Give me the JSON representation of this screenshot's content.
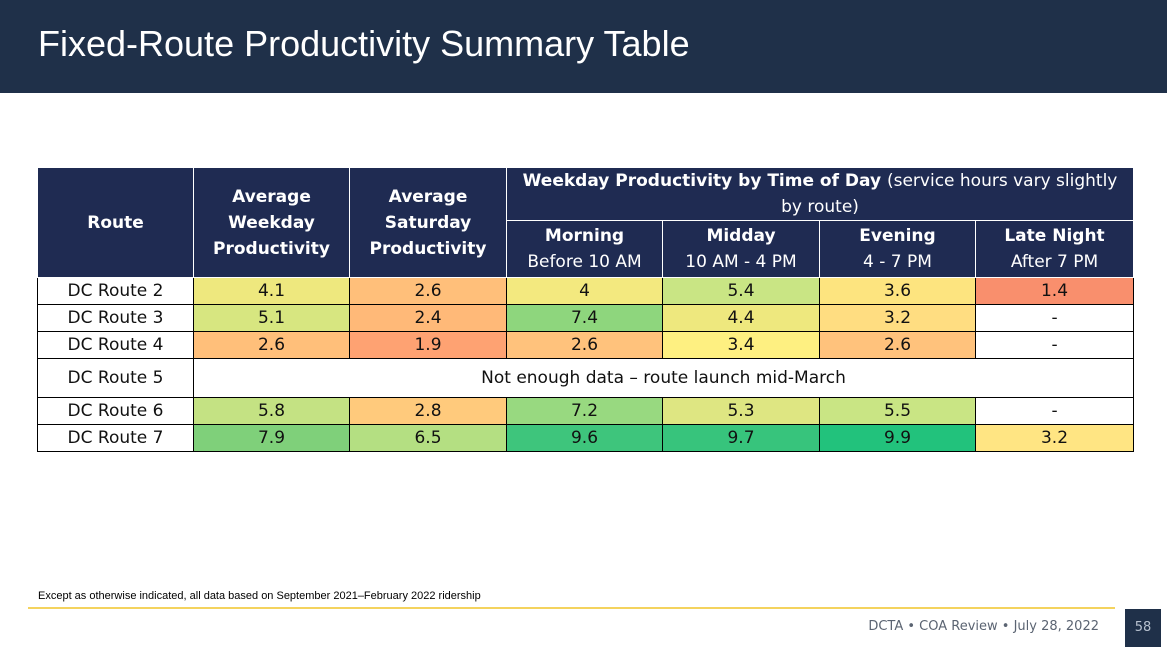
{
  "title": "Fixed-Route Productivity Summary Table",
  "table": {
    "headers": {
      "route": "Route",
      "weekday": "Average Weekday Productivity",
      "saturday": "Average Saturday Productivity",
      "group_bold": "Weekday Productivity by Time of Day",
      "group_normal": "(service hours vary slightly by route)",
      "morning": "Morning",
      "morning_sub": "Before 10 AM",
      "midday": "Midday",
      "midday_sub": "10 AM - 4 PM",
      "evening": "Evening",
      "evening_sub": "4 - 7 PM",
      "late": "Late Night",
      "late_sub": "After 7 PM"
    },
    "rows": [
      {
        "route": "DC Route 2",
        "cells": [
          {
            "v": "4.1",
            "c": "#eee87e"
          },
          {
            "v": "2.6",
            "c": "#ffbf7a"
          },
          {
            "v": "4",
            "c": "#f3e97f"
          },
          {
            "v": "5.4",
            "c": "#c9e584"
          },
          {
            "v": "3.6",
            "c": "#fde47f"
          },
          {
            "v": "1.4",
            "c": "#f98f6d"
          }
        ]
      },
      {
        "route": "DC Route 3",
        "cells": [
          {
            "v": "5.1",
            "c": "#d7e680"
          },
          {
            "v": "2.4",
            "c": "#ffb978"
          },
          {
            "v": "7.4",
            "c": "#8ed67d"
          },
          {
            "v": "4.4",
            "c": "#eee87e"
          },
          {
            "v": "3.2",
            "c": "#ffdd81"
          },
          {
            "v": "-",
            "c": "#ffffff"
          }
        ]
      },
      {
        "route": "DC Route 4",
        "cells": [
          {
            "v": "2.6",
            "c": "#ffbf7a"
          },
          {
            "v": "1.9",
            "c": "#fea272"
          },
          {
            "v": "2.6",
            "c": "#ffc27c"
          },
          {
            "v": "3.4",
            "c": "#fef081"
          },
          {
            "v": "2.6",
            "c": "#ffc27c"
          },
          {
            "v": "-",
            "c": "#ffffff"
          }
        ]
      }
    ],
    "note_row": {
      "route": "DC Route 5",
      "text": "Not enough data – route launch mid-March"
    },
    "rows2": [
      {
        "route": "DC Route 6",
        "cells": [
          {
            "v": "5.8",
            "c": "#c4e283"
          },
          {
            "v": "2.8",
            "c": "#ffca7c"
          },
          {
            "v": "7.2",
            "c": "#98d980"
          },
          {
            "v": "5.3",
            "c": "#dee682"
          },
          {
            "v": "5.5",
            "c": "#c9e584"
          },
          {
            "v": "-",
            "c": "#ffffff"
          }
        ]
      },
      {
        "route": "DC Route 7",
        "cells": [
          {
            "v": "7.9",
            "c": "#7fd07a"
          },
          {
            "v": "6.5",
            "c": "#b4df82"
          },
          {
            "v": "9.6",
            "c": "#3ec57c"
          },
          {
            "v": "9.7",
            "c": "#37c47c"
          },
          {
            "v": "9.9",
            "c": "#22c27c"
          },
          {
            "v": "3.2",
            "c": "#ffe583"
          }
        ]
      }
    ]
  },
  "footnote": "Except as otherwise indicated, all data based on September 2021–February 2022 ridership",
  "footer": "DCTA • COA Review • July 28, 2022",
  "page_number": "58"
}
